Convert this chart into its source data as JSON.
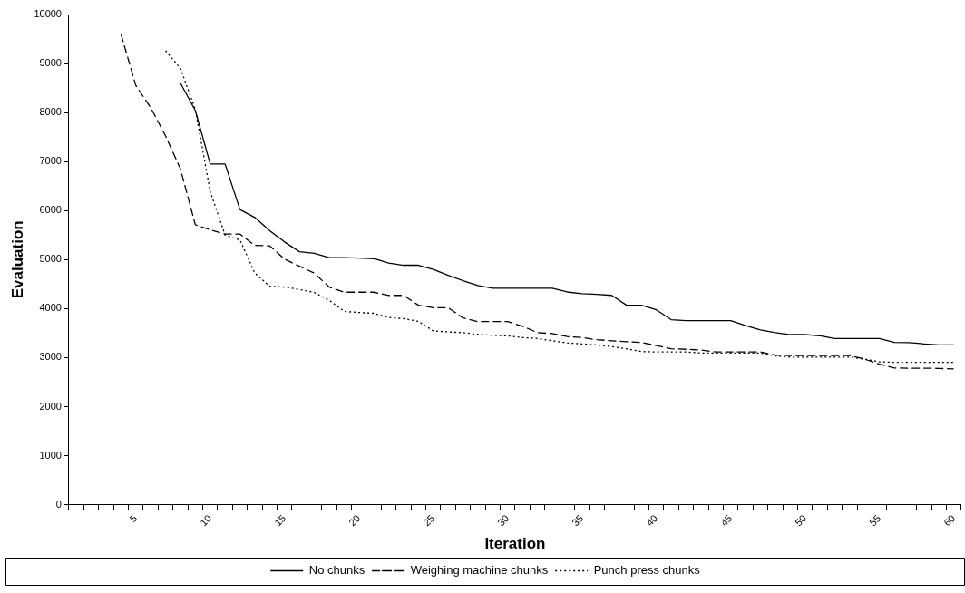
{
  "chart_data": {
    "type": "line",
    "xlabel": "Iteration",
    "ylabel": "Evaluation",
    "categories": [
      null,
      null,
      null,
      null,
      "5",
      null,
      null,
      null,
      null,
      "10",
      null,
      null,
      null,
      null,
      "15",
      null,
      null,
      null,
      null,
      "20",
      null,
      null,
      null,
      null,
      "25",
      null,
      null,
      null,
      null,
      "30",
      null,
      null,
      null,
      null,
      "35",
      null,
      null,
      null,
      null,
      "40",
      null,
      null,
      null,
      null,
      "45",
      null,
      null,
      null,
      null,
      "50",
      null,
      null,
      null,
      null,
      "55",
      null,
      null,
      null,
      null,
      "60"
    ],
    "series": [
      {
        "name": "No chunks",
        "color": "#000000",
        "line_style": "solid",
        "values": [
          null,
          null,
          null,
          null,
          null,
          null,
          null,
          8600,
          8040,
          6950,
          6950,
          6020,
          5860,
          5590,
          5360,
          5160,
          5130,
          5040,
          5040,
          5030,
          5020,
          4930,
          4885,
          4885,
          4800,
          4680,
          4570,
          4470,
          4415,
          4415,
          4415,
          4415,
          4415,
          4340,
          4305,
          4290,
          4270,
          4070,
          4070,
          3975,
          3775,
          3755,
          3755,
          3755,
          3755,
          3655,
          3565,
          3510,
          3470,
          3470,
          3445,
          3390,
          3390,
          3390,
          3390,
          3310,
          3305,
          3280,
          3260,
          3260
        ]
      },
      {
        "name": "Weighing machine chunks",
        "color": "#000000",
        "line_style": "dashed",
        "values": [
          null,
          null,
          null,
          9600,
          8550,
          8100,
          7520,
          6850,
          5710,
          5610,
          5520,
          5520,
          5290,
          5280,
          5010,
          4865,
          4725,
          4440,
          4335,
          4335,
          4335,
          4270,
          4270,
          4070,
          4020,
          4020,
          3810,
          3735,
          3735,
          3735,
          3640,
          3510,
          3490,
          3430,
          3410,
          3365,
          3345,
          3325,
          3310,
          3245,
          3180,
          3170,
          3155,
          3115,
          3115,
          3115,
          3115,
          3050,
          3045,
          3045,
          3045,
          3045,
          3045,
          2970,
          2865,
          2790,
          2785,
          2785,
          2780,
          2770
        ]
      },
      {
        "name": "Punch press chunks",
        "color": "#000000",
        "line_style": "dotted",
        "values": [
          null,
          null,
          null,
          null,
          null,
          null,
          9260,
          8900,
          8060,
          6390,
          5500,
          5400,
          4725,
          4455,
          4440,
          4390,
          4330,
          4170,
          3945,
          3920,
          3905,
          3820,
          3795,
          3740,
          3545,
          3525,
          3510,
          3475,
          3455,
          3445,
          3410,
          3390,
          3345,
          3300,
          3280,
          3260,
          3225,
          3180,
          3125,
          3115,
          3115,
          3115,
          3095,
          3095,
          3095,
          3095,
          3095,
          3035,
          3010,
          3010,
          3010,
          3010,
          3010,
          2970,
          2915,
          2905,
          2905,
          2905,
          2905,
          2905
        ]
      }
    ],
    "ylim": [
      0,
      10000
    ],
    "yticks": [
      0,
      1000,
      2000,
      3000,
      4000,
      5000,
      6000,
      7000,
      8000,
      9000,
      10000
    ],
    "grid": false,
    "legend": "bottom",
    "marker": "none"
  }
}
